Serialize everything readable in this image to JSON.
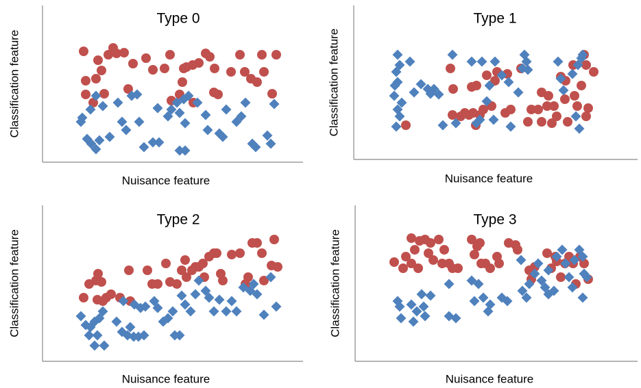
{
  "chart_data": [
    {
      "type": "scatter",
      "title": "Type 0",
      "xlabel": "Nuisance feature",
      "ylabel": "Classification feature",
      "xlim": [
        0,
        380
      ],
      "ylim": [
        0,
        229
      ],
      "series": [
        {
          "color": "#c0504d",
          "marker": "circle",
          "x": [
            60,
            81,
            103,
            108,
            96,
            86,
            78,
            63,
            63,
            74,
            90,
            125,
            132,
            161,
            178,
            186,
            206,
            210,
            219,
            228,
            238,
            244,
            251,
            204,
            200,
            188,
            220,
            250,
            256,
            275,
            288,
            295,
            304,
            313,
            320,
            323,
            341,
            335,
            151,
            119
          ],
          "values": [
            162,
            149,
            167,
            159,
            157,
            134,
            122,
            119,
            99,
            87,
            100,
            107,
            144,
            135,
            137,
            157,
            137,
            139,
            142,
            145,
            159,
            154,
            137,
            117,
            99,
            90,
            87,
            102,
            99,
            132,
            157,
            132,
            122,
            117,
            157,
            132,
            157,
            100,
            152,
            160
          ]
        },
        {
          "color": "#4f81bd",
          "marker": "diamond",
          "x": [
            58,
            70,
            88,
            78,
            65,
            71,
            78,
            83,
            98,
            110,
            116,
            122,
            130,
            138,
            141,
            148,
            161,
            170,
            183,
            188,
            196,
            200,
            208,
            206,
            213,
            226,
            238,
            241,
            258,
            263,
            268,
            283,
            290,
            296,
            306,
            311,
            328,
            333,
            338,
            200,
            208,
            168,
            56
          ],
          "values": [
            65,
            77,
            82,
            97,
            34,
            27,
            19,
            32,
            37,
            87,
            59,
            47,
            97,
            99,
            59,
            22,
            29,
            29,
            67,
            77,
            87,
            72,
            57,
            92,
            97,
            87,
            69,
            47,
            42,
            37,
            77,
            59,
            67,
            87,
            27,
            22,
            39,
            27,
            85,
            17,
            17,
            79,
            59
          ]
        }
      ]
    },
    {
      "type": "scatter",
      "title": "Type 1",
      "xlabel": "Nuisance feature",
      "ylabel": "Classification feature",
      "xlim": [
        0,
        414
      ],
      "ylim": [
        0,
        225
      ],
      "series": [
        {
          "color": "#c0504d",
          "marker": "circle",
          "x": [
            76,
            141,
            145,
            144,
            156,
            162,
            168,
            174,
            178,
            172,
            179,
            184,
            189,
            194,
            201,
            206,
            209,
            224,
            221,
            229,
            244,
            254,
            259,
            269,
            274,
            282,
            289,
            292,
            296,
            284,
            274,
            302,
            309,
            312,
            322,
            326,
            332,
            339,
            336,
            342,
            350,
            339,
            320,
            308
          ],
          "values": [
            50,
            133,
            103,
            65,
            63,
            68,
            65,
            68,
            50,
            106,
            108,
            65,
            73,
            123,
            78,
            115,
            128,
            125,
            68,
            73,
            133,
            55,
            73,
            73,
            55,
            78,
            53,
            78,
            63,
            93,
            98,
            121,
            115,
            55,
            93,
            78,
            108,
            63,
            153,
            75,
            128,
            138,
            138,
            88
          ]
        },
        {
          "color": "#4f81bd",
          "marker": "diamond",
          "x": [
            64,
            67,
            62,
            60,
            59,
            64,
            64,
            62,
            70,
            67,
            82,
            88,
            98,
            108,
            112,
            117,
            124,
            130,
            144,
            149,
            172,
            179,
            184,
            187,
            194,
            198,
            204,
            206,
            216,
            226,
            229,
            240,
            246,
            252,
            254,
            249,
            298,
            302,
            306,
            319,
            324,
            329,
            334,
            327,
            332
          ],
          "values": [
            153,
            138,
            128,
            108,
            93,
            113,
            73,
            48,
            83,
            63,
            143,
            98,
            110,
            103,
            96,
            103,
            95,
            50,
            153,
            53,
            143,
            53,
            58,
            143,
            85,
            108,
            58,
            143,
            123,
            113,
            48,
            98,
            133,
            143,
            131,
            153,
            143,
            118,
            101,
            125,
            63,
            45,
            153,
            138,
            148
          ]
        }
      ]
    },
    {
      "type": "scatter",
      "title": "Type 2",
      "xlabel": "Nuisance feature",
      "ylabel": "Classification feature",
      "xlim": [
        0,
        380
      ],
      "ylim": [
        0,
        228
      ],
      "series": [
        {
          "color": "#c0504d",
          "marker": "circle",
          "x": [
            60,
            68,
            81,
            78,
            86,
            88,
            93,
            100,
            113,
            128,
            126,
            153,
            160,
            168,
            180,
            186,
            196,
            203,
            208,
            210,
            218,
            223,
            228,
            234,
            236,
            243,
            250,
            254,
            260,
            263,
            276,
            288,
            296,
            300,
            306,
            313,
            320,
            323,
            334,
            338,
            343,
            80
          ],
          "values": [
            93,
            113,
            128,
            118,
            116,
            88,
            93,
            98,
            93,
            88,
            133,
            133,
            113,
            113,
            143,
            116,
            113,
            133,
            148,
            123,
            133,
            138,
            138,
            143,
            123,
            153,
            158,
            158,
            128,
            118,
            156,
            158,
            113,
            123,
            173,
            173,
            158,
            118,
            140,
            178,
            138,
            90
          ]
        },
        {
          "color": "#4f81bd",
          "marker": "diamond",
          "x": [
            56,
            63,
            70,
            76,
            83,
            88,
            68,
            76,
            90,
            80,
            108,
            116,
            124,
            128,
            133,
            140,
            148,
            118,
            134,
            143,
            150,
            163,
            168,
            176,
            183,
            190,
            193,
            200,
            203,
            208,
            216,
            223,
            228,
            238,
            243,
            250,
            258,
            268,
            276,
            283,
            293,
            303,
            308,
            313,
            323,
            333,
            341
          ],
          "values": [
            66,
            53,
            50,
            58,
            63,
            73,
            38,
            23,
            23,
            38,
            58,
            43,
            38,
            50,
            36,
            36,
            38,
            88,
            83,
            78,
            80,
            88,
            78,
            58,
            63,
            73,
            38,
            38,
            96,
            83,
            73,
            98,
            118,
            103,
            93,
            73,
            90,
            73,
            88,
            73,
            108,
            103,
            113,
            98,
            68,
            123,
            80
          ]
        }
      ]
    },
    {
      "type": "scatter",
      "title": "Type 3",
      "xlabel": "Nuisance feature",
      "ylabel": "Classification feature",
      "xlim": [
        0,
        412
      ],
      "ylim": [
        0,
        228
      ],
      "series": [
        {
          "color": "#c0504d",
          "marker": "circle",
          "x": [
            57,
            74,
            82,
            87,
            92,
            94,
            102,
            107,
            110,
            114,
            122,
            127,
            130,
            137,
            142,
            150,
            170,
            174,
            178,
            182,
            184,
            190,
            197,
            207,
            210,
            224,
            234,
            237,
            254,
            257,
            262,
            280,
            286,
            292,
            294,
            300,
            306,
            312,
            318,
            322,
            328,
            334,
            340,
            70,
            82
          ],
          "values": [
            145,
            153,
            180,
            163,
            136,
            176,
            178,
            158,
            173,
            148,
            178,
            143,
            163,
            143,
            136,
            136,
            178,
            156,
            168,
            173,
            143,
            143,
            136,
            153,
            143,
            173,
            170,
            163,
            133,
            120,
            138,
            158,
            136,
            153,
            146,
            123,
            143,
            153,
            143,
            113,
            153,
            143,
            120,
            136,
            143
          ]
        },
        {
          "color": "#4f81bd",
          "marker": "diamond",
          "x": [
            62,
            67,
            65,
            82,
            85,
            90,
            97,
            100,
            102,
            110,
            137,
            137,
            147,
            170,
            174,
            180,
            187,
            194,
            197,
            214,
            222,
            242,
            244,
            250,
            254,
            262,
            267,
            272,
            277,
            282,
            290,
            294,
            302,
            307,
            312,
            317,
            320,
            327,
            332,
            334,
            338,
            332,
            282
          ],
          "values": [
            88,
            63,
            80,
            83,
            58,
            73,
            98,
            80,
            66,
            96,
            113,
            66,
            63,
            118,
            88,
            113,
            93,
            73,
            83,
            93,
            88,
            148,
            103,
            93,
            113,
            128,
            143,
            118,
            108,
            98,
            103,
            153,
            163,
            143,
            123,
            108,
            148,
            163,
            153,
            128,
            123,
            93,
            133
          ]
        }
      ]
    }
  ]
}
